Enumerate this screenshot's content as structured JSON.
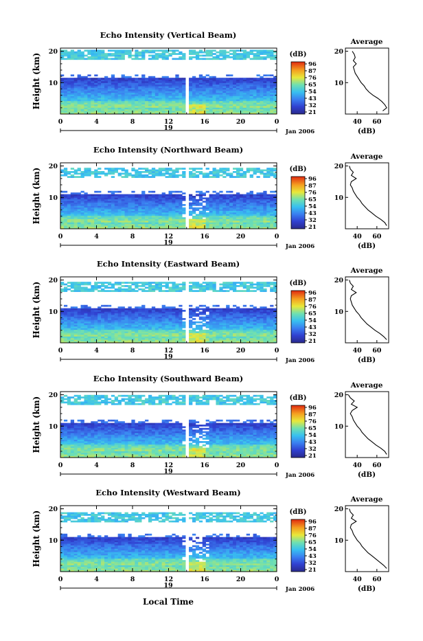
{
  "figure": {
    "xlabel": "Local Time",
    "date_label": "Jan 2006",
    "day_label": "19",
    "colorbar_unit": "(dB)",
    "colorbar_ticks": [
      "96",
      "87",
      "76",
      "65",
      "54",
      "43",
      "32",
      "21"
    ],
    "avg_title": "Average",
    "avg_xlabel": "(dB)",
    "ylabel": "Height (km)"
  },
  "chart_data": [
    {
      "type": "heatmap",
      "title": "Echo Intensity (Vertical Beam)",
      "x_ticks": [
        "0",
        "4",
        "8",
        "12",
        "16",
        "20",
        "0"
      ],
      "y_ticks": [
        "20",
        "10"
      ],
      "xlim": [
        0,
        24
      ],
      "ylim": [
        0,
        20
      ],
      "colorbar_ticks": [
        "96",
        "87",
        "76",
        "65",
        "54",
        "43",
        "32",
        "21"
      ],
      "gap_hours": [
        13.8,
        14.1
      ],
      "top_noise_km": [
        17.5,
        20.5
      ],
      "lower_cloud_km": 11.5,
      "average_profile": {
        "title": "Average",
        "xlabel": "(dB)",
        "x_ticks": [
          "40",
          "60"
        ],
        "xlim": [
          28,
          72
        ],
        "heights": [
          1,
          2,
          3,
          4,
          5,
          6,
          7,
          8,
          9,
          10,
          11,
          12,
          13,
          14,
          15,
          16,
          17,
          18,
          19,
          20
        ],
        "values": [
          66,
          70,
          68,
          65,
          61,
          56,
          52,
          49,
          47,
          44,
          42,
          40,
          38,
          37,
          36,
          39,
          36,
          38,
          37,
          35
        ]
      }
    },
    {
      "type": "heatmap",
      "title": "Echo Intensity (Northward Beam)",
      "x_ticks": [
        "0",
        "4",
        "8",
        "12",
        "16",
        "20",
        "0"
      ],
      "y_ticks": [
        "20",
        "10"
      ],
      "xlim": [
        0,
        24
      ],
      "ylim": [
        0,
        20
      ],
      "colorbar_ticks": [
        "96",
        "87",
        "76",
        "65",
        "54",
        "43",
        "32",
        "21"
      ],
      "gap_hours": [
        13.8,
        14.1
      ],
      "top_noise_km": [
        16.5,
        19.5
      ],
      "lower_cloud_km": 11,
      "average_profile": {
        "title": "Average",
        "xlabel": "(dB)",
        "x_ticks": [
          "40",
          "60"
        ],
        "xlim": [
          28,
          72
        ],
        "heights": [
          1,
          2,
          3,
          4,
          5,
          6,
          7,
          8,
          9,
          10,
          11,
          12,
          13,
          14,
          15,
          16,
          17,
          18,
          19,
          20
        ],
        "values": [
          70,
          68,
          64,
          59,
          55,
          51,
          48,
          45,
          43,
          40,
          38,
          36,
          35,
          33,
          34,
          39,
          34,
          36,
          33,
          32
        ]
      }
    },
    {
      "type": "heatmap",
      "title": "Echo Intensity (Eastward Beam)",
      "x_ticks": [
        "0",
        "4",
        "8",
        "12",
        "16",
        "20",
        "0"
      ],
      "y_ticks": [
        "20",
        "10"
      ],
      "xlim": [
        0,
        24
      ],
      "ylim": [
        0,
        20
      ],
      "colorbar_ticks": [
        "96",
        "87",
        "76",
        "65",
        "54",
        "43",
        "32",
        "21"
      ],
      "gap_hours": [
        13.8,
        14.1
      ],
      "top_noise_km": [
        16.5,
        19.5
      ],
      "lower_cloud_km": 11,
      "average_profile": {
        "title": "Average",
        "xlabel": "(dB)",
        "x_ticks": [
          "40",
          "60"
        ],
        "xlim": [
          28,
          72
        ],
        "heights": [
          1,
          2,
          3,
          4,
          5,
          6,
          7,
          8,
          9,
          10,
          11,
          12,
          13,
          14,
          15,
          16,
          17,
          18,
          19,
          20
        ],
        "values": [
          70,
          67,
          63,
          58,
          54,
          50,
          47,
          44,
          42,
          39,
          37,
          35,
          34,
          33,
          34,
          39,
          34,
          36,
          33,
          32
        ]
      }
    },
    {
      "type": "heatmap",
      "title": "Echo Intensity (Southward Beam)",
      "x_ticks": [
        "0",
        "4",
        "8",
        "12",
        "16",
        "20",
        "0"
      ],
      "y_ticks": [
        "20",
        "10"
      ],
      "xlim": [
        0,
        24
      ],
      "ylim": [
        0,
        20
      ],
      "colorbar_ticks": [
        "96",
        "87",
        "76",
        "65",
        "54",
        "43",
        "32",
        "21"
      ],
      "gap_hours": [
        13.8,
        14.1
      ],
      "top_noise_km": [
        17,
        20
      ],
      "lower_cloud_km": 11,
      "average_profile": {
        "title": "Average",
        "xlabel": "(dB)",
        "x_ticks": [
          "40",
          "60"
        ],
        "xlim": [
          28,
          72
        ],
        "heights": [
          1,
          2,
          3,
          4,
          5,
          6,
          7,
          8,
          9,
          10,
          11,
          12,
          13,
          14,
          15,
          16,
          17,
          18,
          19,
          20
        ],
        "values": [
          70,
          68,
          64,
          59,
          55,
          51,
          48,
          45,
          43,
          40,
          38,
          36,
          35,
          33,
          35,
          40,
          34,
          37,
          33,
          31
        ]
      }
    },
    {
      "type": "heatmap",
      "title": "Echo Intensity (Westward Beam)",
      "x_ticks": [
        "0",
        "4",
        "8",
        "12",
        "16",
        "20",
        "0"
      ],
      "y_ticks": [
        "20",
        "10"
      ],
      "xlim": [
        0,
        24
      ],
      "ylim": [
        0,
        20
      ],
      "colorbar_ticks": [
        "96",
        "87",
        "76",
        "65",
        "54",
        "43",
        "32",
        "21"
      ],
      "gap_hours": [
        13.8,
        14.1
      ],
      "top_noise_km": [
        15.5,
        19
      ],
      "lower_cloud_km": 11,
      "average_profile": {
        "title": "Average",
        "xlabel": "(dB)",
        "x_ticks": [
          "40",
          "60"
        ],
        "xlim": [
          28,
          72
        ],
        "heights": [
          1,
          2,
          3,
          4,
          5,
          6,
          7,
          8,
          9,
          10,
          11,
          12,
          13,
          14,
          15,
          16,
          17,
          18,
          19,
          20
        ],
        "values": [
          70,
          67,
          63,
          59,
          55,
          51,
          48,
          45,
          43,
          40,
          38,
          36,
          35,
          33,
          34,
          39,
          34,
          36,
          33,
          32
        ]
      }
    }
  ]
}
